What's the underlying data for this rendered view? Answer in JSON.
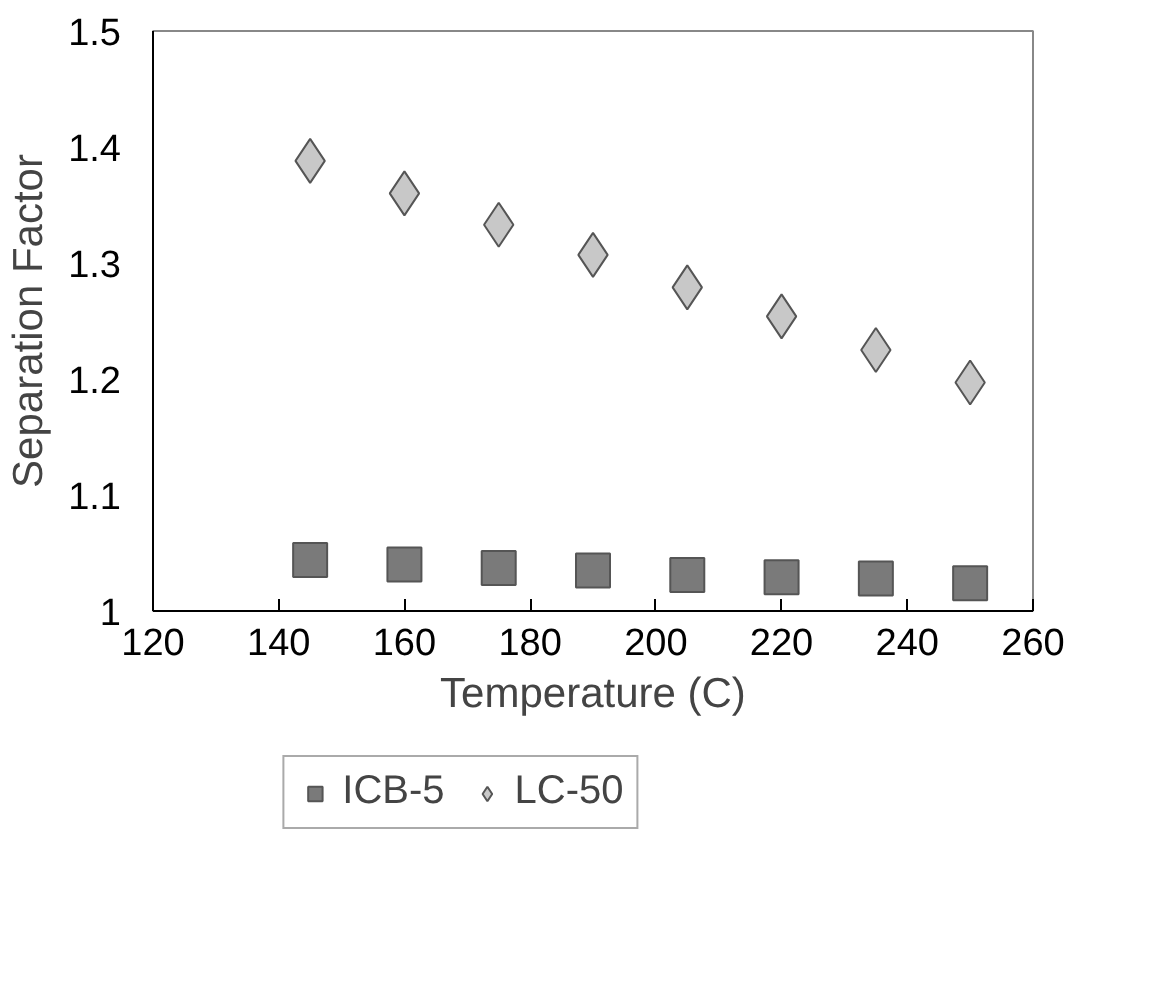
{
  "chart_data": {
    "type": "scatter",
    "xlabel": "Temperature (C)",
    "ylabel": "Separation Factor",
    "x": [
      145,
      160,
      175,
      190,
      205,
      220,
      235,
      250
    ],
    "series": [
      {
        "name": "ICB-5",
        "color": "#7a7a7a",
        "marker": "square",
        "values": [
          1.044,
          1.04,
          1.037,
          1.035,
          1.031,
          1.029,
          1.028,
          1.024
        ]
      },
      {
        "name": "LC-50",
        "color": "#c8c8c8",
        "marker": "diamond",
        "values": [
          1.388,
          1.36,
          1.333,
          1.307,
          1.279,
          1.254,
          1.225,
          1.197
        ]
      }
    ],
    "xlim": [
      120,
      260
    ],
    "xticks": [
      120,
      140,
      160,
      180,
      200,
      220,
      240,
      260
    ],
    "ylim": [
      1,
      1.5
    ],
    "yticks": [
      1,
      1.1,
      1.2,
      1.3,
      1.4,
      1.5
    ],
    "grid": false,
    "legend": "bottom"
  }
}
